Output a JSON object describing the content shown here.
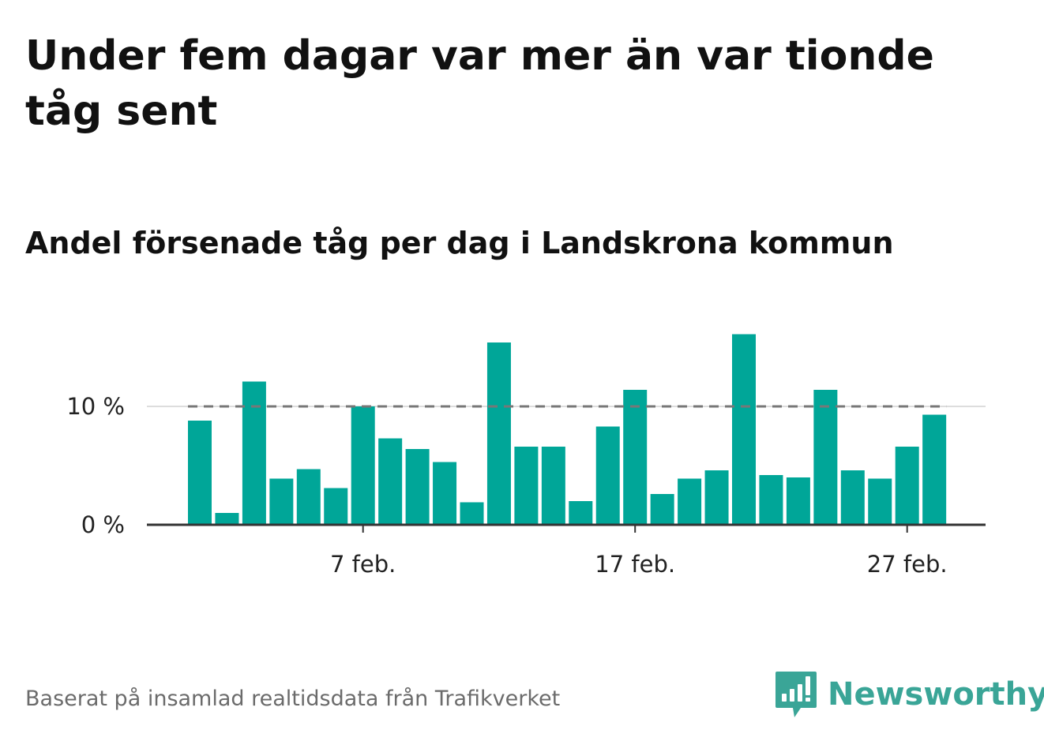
{
  "title": "Under fem dagar var mer än var tionde tåg sent",
  "subtitle": "Andel försenade tåg per dag i Landskrona kommun",
  "source": "Baserat på insamlad realtidsdata från Trafikverket",
  "logo": {
    "text": "Newsworthy",
    "icon": "newsworthy-bar-icon",
    "color": "#3aa597"
  },
  "colors": {
    "bar": "#00a698",
    "reference_line": "#777777",
    "grid": "#dddddd",
    "axis": "#333333"
  },
  "chart_data": {
    "type": "bar",
    "title": "Andel försenade tåg per dag i Landskrona kommun",
    "xlabel": "",
    "ylabel": "",
    "x_unit": "day of February",
    "x": [
      1,
      2,
      3,
      4,
      5,
      6,
      7,
      8,
      9,
      10,
      11,
      12,
      13,
      14,
      15,
      16,
      17,
      18,
      19,
      20,
      21,
      22,
      23,
      24,
      25,
      26,
      27,
      28
    ],
    "values": [
      8.8,
      1.0,
      12.1,
      3.9,
      4.7,
      3.1,
      10.0,
      7.3,
      6.4,
      5.3,
      1.9,
      15.4,
      6.6,
      6.6,
      2.0,
      8.3,
      11.4,
      2.6,
      3.9,
      4.6,
      16.1,
      4.2,
      4.0,
      11.4,
      4.6,
      3.9,
      6.6,
      9.3
    ],
    "reference_line": {
      "value": 10,
      "style": "dashed"
    },
    "ylim": [
      0,
      17
    ],
    "y_ticks": [
      {
        "value": 0,
        "label": "0 %"
      },
      {
        "value": 10,
        "label": "10 %"
      }
    ],
    "x_ticks": [
      {
        "value": 7,
        "label": "7 feb."
      },
      {
        "value": 17,
        "label": "17 feb."
      },
      {
        "value": 27,
        "label": "27 feb."
      }
    ],
    "grid": true,
    "legend": "none"
  }
}
